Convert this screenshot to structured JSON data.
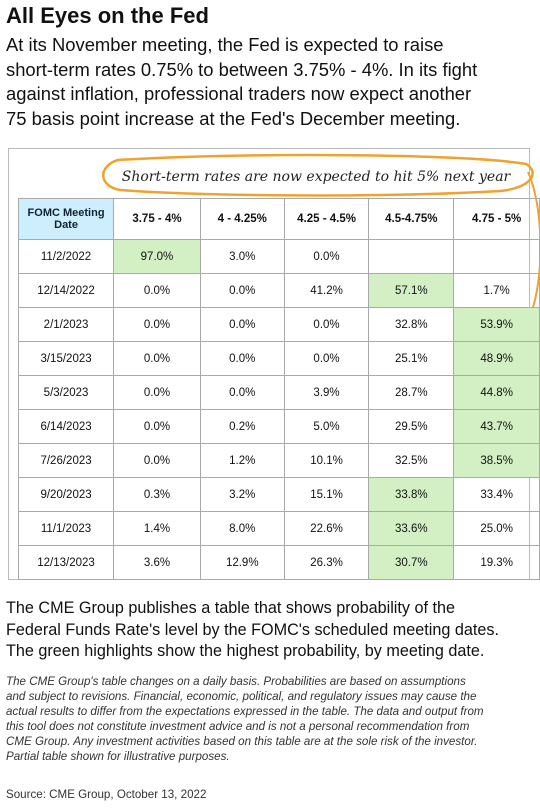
{
  "header": {
    "title": "All Eyes on the Fed",
    "intro_lines": [
      "At its November meeting, the Fed is expected to raise",
      "short-term rates 0.75% to between 3.75% - 4%. In its fight",
      "against inflation, professional traders now expect another",
      "75 basis point increase at the Fed's December meeting."
    ]
  },
  "annotation": "Short-term rates are now expected to hit 5% next year",
  "table": {
    "highlight_color": "#d3efc4",
    "columns": [
      "FOMC Meeting Date",
      "3.75 - 4%",
      "4 - 4.25%",
      "4.25 - 4.5%",
      "4.5-4.75%",
      "4.75 - 5%"
    ],
    "rows": [
      [
        "11/2/2022",
        "97.0%",
        "3.0%",
        "0.0%",
        null,
        null
      ],
      [
        "12/14/2022",
        "0.0%",
        "0.0%",
        "41.2%",
        "57.1%",
        "1.7%"
      ],
      [
        "2/1/2023",
        "0.0%",
        "0.0%",
        "0.0%",
        "32.8%",
        "53.9%"
      ],
      [
        "3/15/2023",
        "0.0%",
        "0.0%",
        "0.0%",
        "25.1%",
        "48.9%"
      ],
      [
        "5/3/2023",
        "0.0%",
        "0.0%",
        "3.9%",
        "28.7%",
        "44.8%"
      ],
      [
        "6/14/2023",
        "0.0%",
        "0.2%",
        "5.0%",
        "29.5%",
        "43.7%"
      ],
      [
        "7/26/2023",
        "0.0%",
        "1.2%",
        "10.1%",
        "32.5%",
        "38.5%"
      ],
      [
        "9/20/2023",
        "0.3%",
        "3.2%",
        "15.1%",
        "33.8%",
        "33.4%"
      ],
      [
        "11/1/2023",
        "1.4%",
        "8.0%",
        "22.6%",
        "33.6%",
        "25.0%"
      ],
      [
        "12/13/2023",
        "3.6%",
        "12.9%",
        "26.3%",
        "30.7%",
        "19.3%"
      ]
    ],
    "highlighted_columns": [
      1,
      4,
      5,
      5,
      5,
      5,
      5,
      4,
      4,
      4
    ]
  },
  "explanation_lines": [
    "The CME Group publishes a table that shows probability of the",
    "Federal Funds Rate's level by the FOMC's scheduled meeting dates.",
    "The green highlights show the highest probability, by meeting date."
  ],
  "disclaimer_lines": [
    "The CME Group's table changes on a daily basis. Probabilities are based on assumptions",
    "and subject to revisions. Financial, economic, political, and regulatory issues may cause the",
    "actual results to differ from the expectations expressed in the table. The data and output from",
    "this tool does not constitute investment advice and is not a personal recommendation from",
    "CME Group.  Any investment activities based on this table are at the sole risk of the investor.",
    "Partial table shown for illustrative purposes."
  ],
  "source": "Source: CME Group, October 13, 2022"
}
